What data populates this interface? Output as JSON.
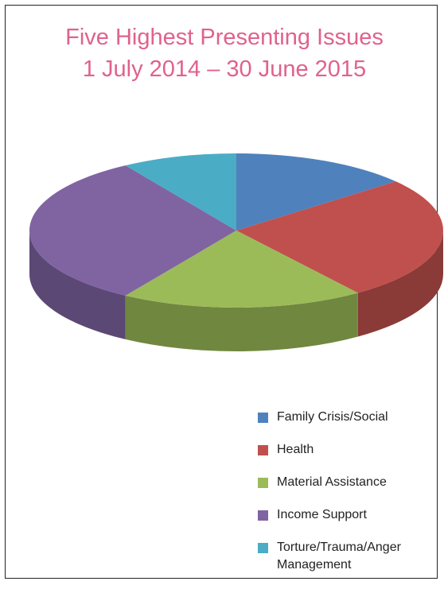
{
  "chart_data": {
    "type": "pie3d",
    "title": "Five Highest Presenting Issues",
    "subtitle": "1 July 2014 – 30 June 2015",
    "categories": [
      "Family Crisis/Social",
      "Health",
      "Material Assistance",
      "Income Support",
      "Torture/Trauma/Anger Management"
    ],
    "values": [
      14,
      26,
      19,
      32,
      9
    ],
    "colors": [
      "#4f81bd",
      "#c0504d",
      "#9bbb59",
      "#8064a2",
      "#4bacc6"
    ],
    "legend": "bottom-right"
  }
}
